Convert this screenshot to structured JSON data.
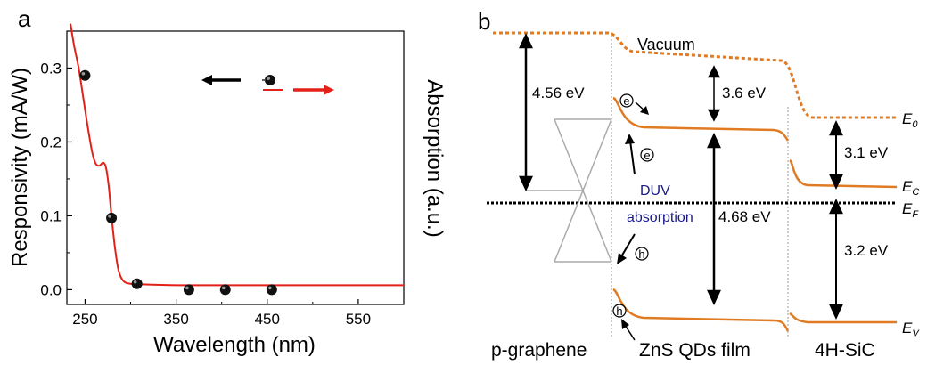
{
  "chart_data": [
    {
      "type": "scatter+line",
      "panel_label": "a",
      "xlabel": "Wavelength (nm)",
      "ylabel": "Responsivity (mA/W)",
      "ylabel_right": "Absorption (a.u.)",
      "xlim": [
        230,
        600
      ],
      "ylim": [
        -0.02,
        0.35
      ],
      "xticks": [
        250,
        350,
        450,
        550
      ],
      "yticks": [
        0.0,
        0.1,
        0.2,
        0.3
      ],
      "ytick_labels": [
        "0.0",
        "0.1",
        "0.2",
        "0.3"
      ],
      "series": [
        {
          "kind": "points",
          "color": "#000000",
          "x": [
            250,
            279,
            307,
            364,
            404,
            455
          ],
          "y": [
            0.29,
            0.097,
            0.008,
            0.0,
            0.0,
            0.0
          ]
        },
        {
          "kind": "line",
          "color": "#e32119",
          "x": [
            234,
            238,
            243,
            248,
            253,
            258,
            262,
            266,
            270,
            273,
            276,
            279,
            283,
            287,
            292,
            300,
            320,
            360,
            420,
            500,
            600
          ],
          "y": [
            0.36,
            0.33,
            0.3,
            0.26,
            0.22,
            0.185,
            0.17,
            0.168,
            0.172,
            0.165,
            0.14,
            0.1,
            0.055,
            0.025,
            0.012,
            0.008,
            0.007,
            0.006,
            0.006,
            0.006,
            0.006
          ]
        }
      ],
      "legend": {
        "placement": "top-right",
        "left_arrow_color": "#000000",
        "right_arrow_color": "#e32119"
      }
    },
    {
      "type": "band-diagram",
      "panel_label": "b",
      "regions": [
        "p-graphene",
        "ZnS QDs film",
        "4H-SiC"
      ],
      "labels": {
        "vacuum": "Vacuum",
        "e0": "E",
        "e0_sub": "0",
        "ec": "E",
        "ec_sub": "C",
        "ef": "E",
        "ef_sub": "F",
        "ev": "E",
        "ev_sub": "V",
        "gap_graphene": "4.56 eV",
        "gap_zns_top": "3.6 eV",
        "gap_zns_band": "4.68 eV",
        "gap_sic_top": "3.1 eV",
        "gap_sic_band": "3.2 eV",
        "duv": "DUV",
        "absorption": "absorption",
        "electron": "e",
        "hole": "h"
      },
      "colors": {
        "band": "#e07b24",
        "annotation": "#1a1a8c",
        "fermi": "#000000"
      }
    }
  ]
}
